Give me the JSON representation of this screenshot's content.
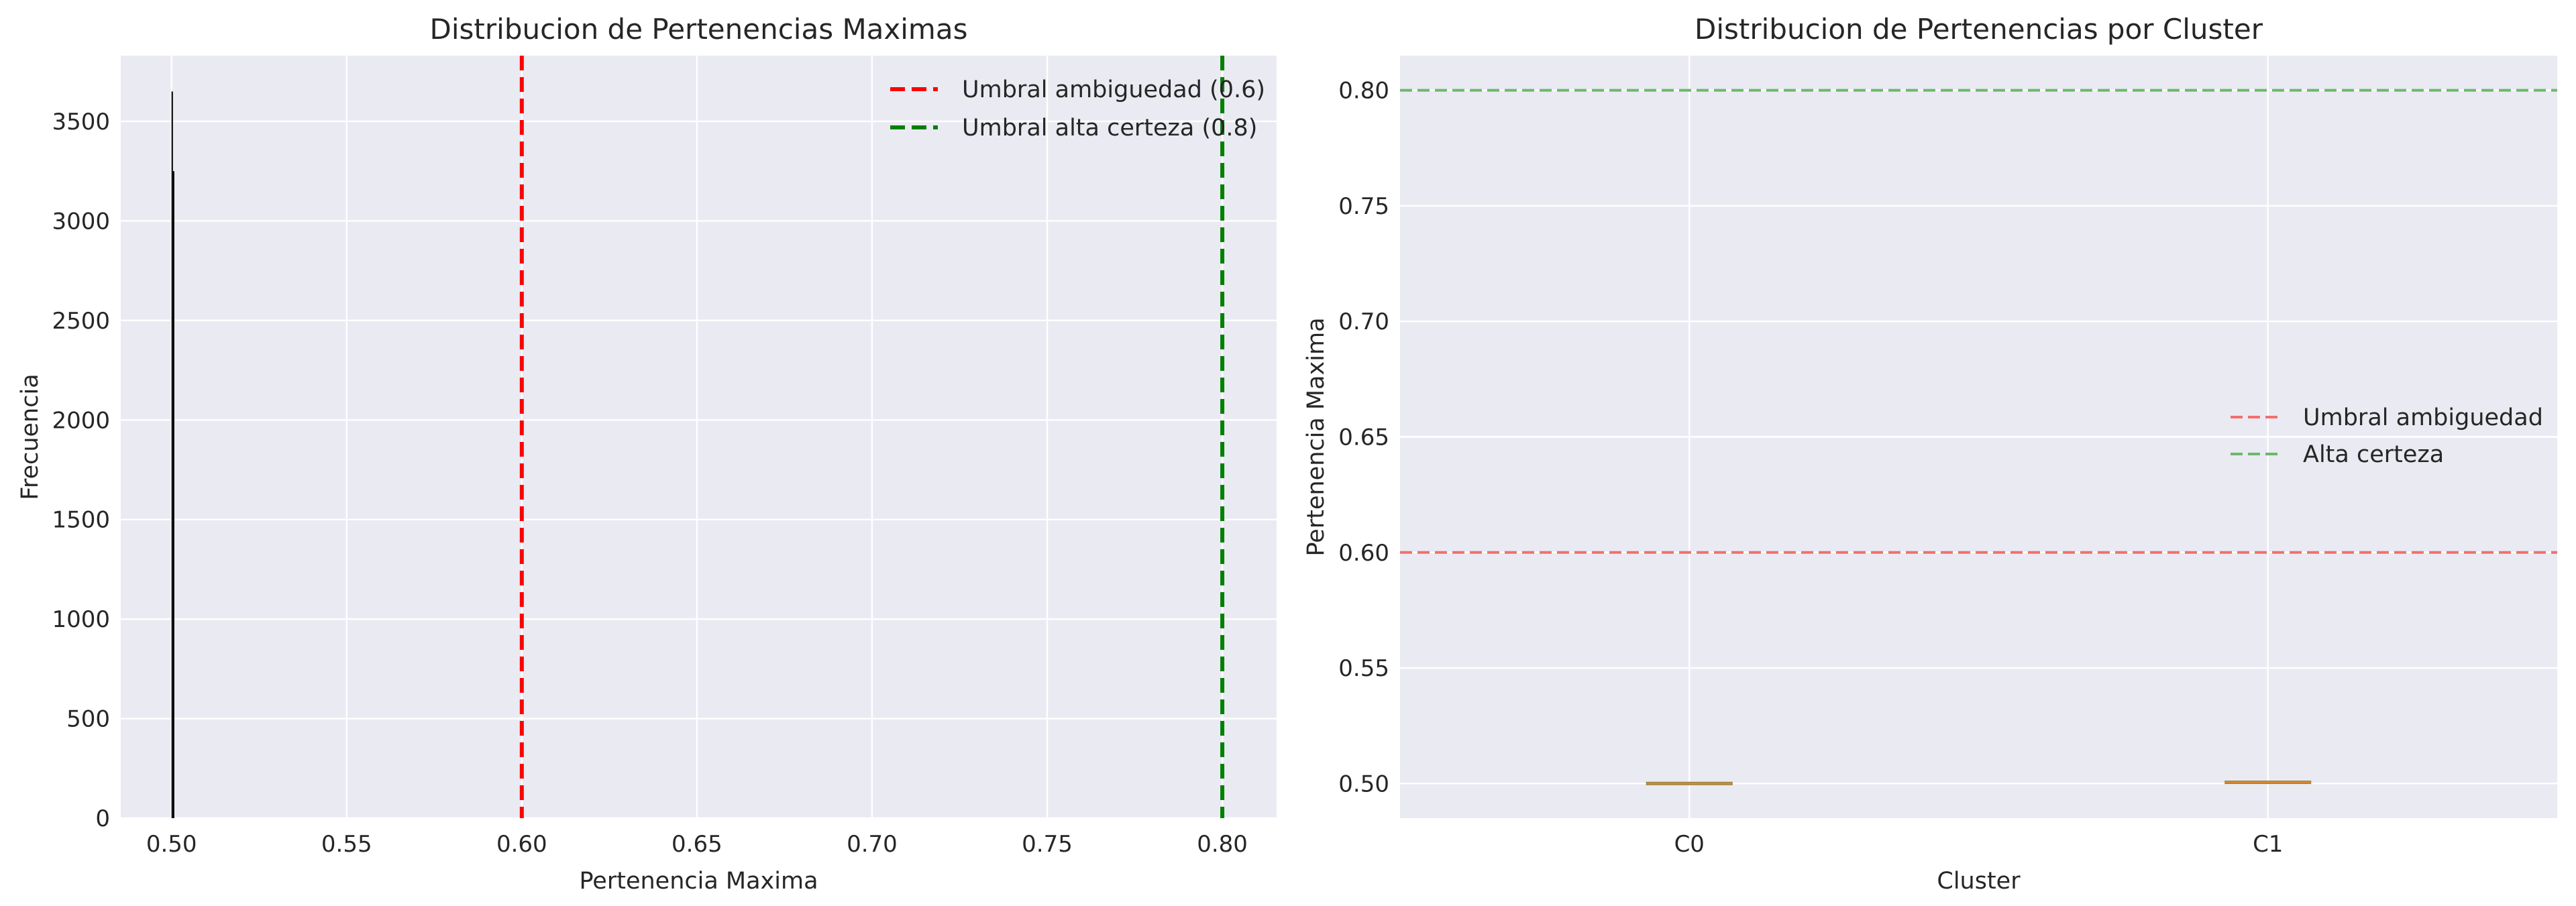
{
  "chart_data": [
    {
      "type": "bar",
      "title": "Distribucion de Pertenencias Maximas",
      "xlabel": "Pertenencia Maxima",
      "ylabel": "Frecuencia",
      "xlim": [
        0.4855,
        0.8155
      ],
      "ylim": [
        0,
        3830
      ],
      "xticks": [
        0.5,
        0.55,
        0.6,
        0.65,
        0.7,
        0.75,
        0.8
      ],
      "xtick_labels": [
        "0.50",
        "0.55",
        "0.60",
        "0.65",
        "0.70",
        "0.75",
        "0.80"
      ],
      "yticks": [
        0,
        500,
        1000,
        1500,
        2000,
        2500,
        3000,
        3500
      ],
      "ytick_labels": [
        "0",
        "500",
        "1000",
        "1500",
        "2000",
        "2500",
        "3000",
        "3500"
      ],
      "bars": [
        {
          "x": 0.5,
          "width": 0.0004,
          "value": 3650
        },
        {
          "x": 0.5004,
          "width": 0.0004,
          "value": 3250
        }
      ],
      "vlines": [
        {
          "x": 0.6,
          "color": "#ff0000",
          "label": "Umbral ambiguedad (0.6)"
        },
        {
          "x": 0.8,
          "color": "#008000",
          "label": "Umbral alta certeza (0.8)"
        }
      ],
      "legend_position": "top-right",
      "grid": true
    },
    {
      "type": "box",
      "title": "Distribucion de Pertenencias por Cluster",
      "xlabel": "Cluster",
      "ylabel": "Pertenencia Maxima",
      "categories": [
        "C0",
        "C1"
      ],
      "medians": [
        0.5,
        0.5005
      ],
      "ylim": [
        0.485,
        0.815
      ],
      "yticks": [
        0.5,
        0.55,
        0.6,
        0.65,
        0.7,
        0.75,
        0.8
      ],
      "ytick_labels": [
        "0.50",
        "0.55",
        "0.60",
        "0.65",
        "0.70",
        "0.75",
        "0.80"
      ],
      "hlines": [
        {
          "y": 0.6,
          "color": "#f07070",
          "label": "Umbral ambiguedad"
        },
        {
          "y": 0.8,
          "color": "#6cb86c",
          "label": "Alta certeza"
        }
      ],
      "legend_position": "center-right",
      "grid": true
    }
  ]
}
